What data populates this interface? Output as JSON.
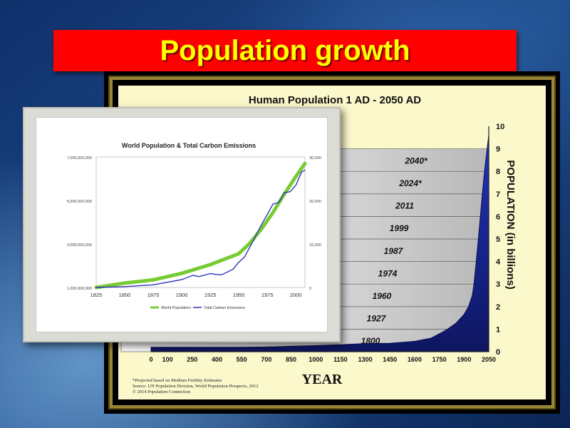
{
  "slide": {
    "title": "Population growth",
    "colors": {
      "title_bar": "#ff0000",
      "title_text": "#ffff00"
    }
  },
  "chart_data": [
    {
      "type": "area",
      "title": "Human Population 1 AD - 2050 AD",
      "xlabel": "YEAR",
      "ylabel": "POPULATION (in billions)",
      "ylim": [
        0,
        10
      ],
      "x_ticks": [
        "0",
        "100",
        "250",
        "400",
        "550",
        "700",
        "850",
        "1000",
        "1150",
        "1300",
        "1450",
        "1600",
        "1750",
        "1900",
        "2050"
      ],
      "y_ticks": [
        "0",
        "1",
        "2",
        "3",
        "4",
        "5",
        "6",
        "7",
        "8",
        "9",
        "10"
      ],
      "series": [
        {
          "x": [
            0,
            100,
            250,
            400,
            550,
            700,
            850,
            1000,
            1150,
            1300,
            1450,
            1600,
            1700,
            1750,
            1800,
            1850,
            1900,
            1927,
            1950,
            1960,
            1974,
            1987,
            1999,
            2011,
            2024,
            2040,
            2050
          ],
          "values": [
            0.2,
            0.2,
            0.2,
            0.2,
            0.2,
            0.21,
            0.24,
            0.27,
            0.31,
            0.36,
            0.37,
            0.46,
            0.6,
            0.79,
            1.0,
            1.26,
            1.65,
            2.0,
            2.5,
            3.0,
            4.0,
            5.0,
            6.0,
            7.0,
            8.0,
            9.0,
            9.6
          ]
        }
      ],
      "milestones": [
        {
          "label": "1800",
          "level": 1
        },
        {
          "label": "1927",
          "level": 2
        },
        {
          "label": "1960",
          "level": 3
        },
        {
          "label": "1974",
          "level": 4
        },
        {
          "label": "1987",
          "level": 5
        },
        {
          "label": "1999",
          "level": 6
        },
        {
          "label": "2011",
          "level": 7
        },
        {
          "label": "2024*",
          "level": 8
        },
        {
          "label": "2040*",
          "level": 9
        }
      ],
      "footnotes": [
        "*Projected based on Medium Fertility Estimates",
        "Source: UN Population Division, World Population Prospects, 2012",
        "© 2014 Population Connection"
      ],
      "colors": {
        "area": "#1c2a9c",
        "panel": "#fbf8cb"
      }
    },
    {
      "type": "line",
      "title": "World Population & Total Carbon Emissions",
      "x_ticks": [
        "1825",
        "1850",
        "1875",
        "1900",
        "1925",
        "1950",
        "1975",
        "2000"
      ],
      "y_left_ticks": [
        "1,000,000,000",
        "3,000,000,000",
        "5,000,000,000",
        "7,000,000,000"
      ],
      "y_right_ticks": [
        "0",
        "10,000",
        "20,000",
        "30,000"
      ],
      "y_left_range": [
        1000000000,
        7000000000
      ],
      "y_right_range": [
        0,
        30000
      ],
      "xlim": [
        1825,
        2008
      ],
      "series": [
        {
          "name": "World Population",
          "axis": "left",
          "color": "#77cc33",
          "x": [
            1825,
            1850,
            1875,
            1900,
            1925,
            1950,
            1960,
            1970,
            1980,
            1990,
            2000,
            2008
          ],
          "values": [
            1000000000,
            1200000000,
            1350000000,
            1650000000,
            2050000000,
            2550000000,
            3050000000,
            3700000000,
            4450000000,
            5300000000,
            6100000000,
            6700000000
          ]
        },
        {
          "name": "Total Carbon Emissions",
          "axis": "right",
          "color": "#3333bb",
          "x": [
            1825,
            1850,
            1875,
            1900,
            1910,
            1915,
            1925,
            1930,
            1935,
            1945,
            1950,
            1955,
            1960,
            1970,
            1975,
            1980,
            1985,
            1990,
            1995,
            2000,
            2005,
            2008
          ],
          "values": [
            0,
            200,
            600,
            1800,
            2800,
            2500,
            3200,
            3000,
            2900,
            4200,
            5800,
            7000,
            9400,
            14500,
            16800,
            19200,
            19500,
            21800,
            22000,
            23500,
            26500,
            27000
          ]
        }
      ]
    }
  ]
}
